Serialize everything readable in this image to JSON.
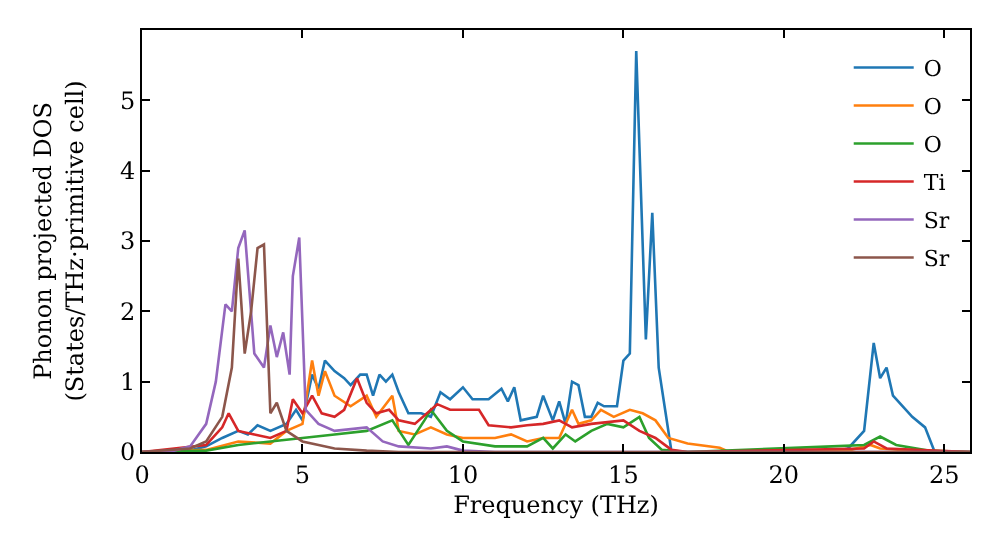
{
  "chart_data": {
    "type": "line",
    "xlabel": "Frequency (THz)",
    "ylabel": "Phonon projected DOS\n(States/THz·primitive cell)",
    "xlim": [
      0,
      25.8
    ],
    "ylim": [
      0,
      6
    ],
    "xticks": [
      0,
      5,
      10,
      15,
      20,
      25
    ],
    "yticks": [
      0,
      1,
      2,
      3,
      4,
      5
    ],
    "legend": "top right",
    "marker": "none",
    "line_style": "solid",
    "series": [
      {
        "name": "O",
        "color": "#1f77b4",
        "x": [
          0,
          1.5,
          2,
          2.5,
          3,
          3.3,
          3.6,
          4,
          4.5,
          4.8,
          5,
          5.3,
          5.5,
          5.7,
          6,
          6.3,
          6.5,
          6.8,
          7,
          7.2,
          7.4,
          7.6,
          7.8,
          8,
          8.3,
          8.7,
          9,
          9.3,
          9.6,
          10,
          10.3,
          10.8,
          11.2,
          11.4,
          11.6,
          11.8,
          12.3,
          12.5,
          12.8,
          13,
          13.2,
          13.4,
          13.6,
          13.8,
          14,
          14.2,
          14.4,
          14.8,
          15,
          15.2,
          15.4,
          15.7,
          15.9,
          16.1,
          16.3,
          16.5,
          21.5,
          22,
          22.5,
          22.8,
          23,
          23.2,
          23.4,
          24,
          24.4,
          24.7,
          25.8
        ],
        "values": [
          0,
          0.02,
          0.08,
          0.2,
          0.3,
          0.25,
          0.38,
          0.3,
          0.4,
          0.6,
          0.45,
          1.1,
          0.9,
          1.3,
          1.15,
          1.05,
          0.95,
          1.1,
          1.1,
          0.8,
          1.1,
          1.0,
          1.1,
          0.85,
          0.55,
          0.55,
          0.5,
          0.85,
          0.75,
          0.92,
          0.75,
          0.75,
          0.9,
          0.72,
          0.92,
          0.45,
          0.5,
          0.8,
          0.45,
          0.72,
          0.4,
          1.0,
          0.95,
          0.5,
          0.5,
          0.7,
          0.65,
          0.65,
          1.3,
          1.4,
          5.7,
          1.6,
          3.4,
          1.2,
          0.6,
          0,
          0,
          0.05,
          0.3,
          1.55,
          1.05,
          1.2,
          0.8,
          0.5,
          0.35,
          0,
          0
        ]
      },
      {
        "name": "O",
        "color": "#ff7f0e",
        "x": [
          0,
          2,
          3,
          4,
          4.5,
          5,
          5.3,
          5.5,
          5.7,
          6,
          6.5,
          7,
          7.3,
          7.8,
          8,
          8.5,
          9,
          9.5,
          10,
          11,
          11.5,
          12,
          12.5,
          13,
          13.4,
          13.6,
          14,
          14.3,
          14.7,
          15.2,
          15.6,
          16,
          16.4,
          17,
          18,
          18.3,
          22,
          22.7,
          23,
          24,
          25.8
        ],
        "values": [
          0,
          0.03,
          0.15,
          0.12,
          0.3,
          0.4,
          1.3,
          0.8,
          1.15,
          0.8,
          0.65,
          0.8,
          0.5,
          0.8,
          0.3,
          0.25,
          0.35,
          0.25,
          0.2,
          0.2,
          0.25,
          0.15,
          0.2,
          0.2,
          0.6,
          0.4,
          0.45,
          0.6,
          0.5,
          0.6,
          0.55,
          0.45,
          0.2,
          0.12,
          0.06,
          0,
          0.02,
          0.1,
          0.05,
          0.02,
          0
        ]
      },
      {
        "name": "O",
        "color": "#2ca02c",
        "x": [
          0,
          2,
          3,
          4,
          5,
          6,
          7,
          7.8,
          8.3,
          8.8,
          9,
          9.5,
          10,
          11,
          12,
          12.5,
          12.8,
          13.2,
          13.5,
          14,
          14.5,
          15,
          15.5,
          15.8,
          16.2,
          17,
          21.5,
          22.5,
          23,
          23.5,
          24.5,
          25.8
        ],
        "values": [
          0,
          0.02,
          0.1,
          0.15,
          0.2,
          0.25,
          0.3,
          0.45,
          0.1,
          0.45,
          0.6,
          0.3,
          0.15,
          0.08,
          0.08,
          0.2,
          0.05,
          0.25,
          0.15,
          0.3,
          0.4,
          0.35,
          0.5,
          0.2,
          0.03,
          0,
          0.08,
          0.1,
          0.22,
          0.1,
          0.02,
          0
        ]
      },
      {
        "name": "Ti",
        "color": "#d62728",
        "x": [
          0,
          2,
          2.5,
          2.7,
          3,
          3.5,
          4,
          4.5,
          4.7,
          5,
          5.3,
          5.6,
          6,
          6.3,
          6.7,
          7,
          7.3,
          7.7,
          8,
          8.5,
          9.2,
          9.6,
          10.5,
          10.8,
          11.5,
          12,
          12.5,
          13,
          13.4,
          14,
          15,
          15.5,
          16,
          16.5,
          17,
          22.5,
          22.8,
          23.2,
          25.8
        ],
        "values": [
          0,
          0.1,
          0.35,
          0.55,
          0.3,
          0.25,
          0.2,
          0.3,
          0.75,
          0.55,
          0.8,
          0.55,
          0.5,
          0.6,
          1.05,
          0.7,
          0.55,
          0.6,
          0.45,
          0.4,
          0.68,
          0.6,
          0.6,
          0.38,
          0.35,
          0.38,
          0.4,
          0.45,
          0.35,
          0.4,
          0.45,
          0.3,
          0.2,
          0.03,
          0,
          0.05,
          0.15,
          0.05,
          0
        ]
      },
      {
        "name": "Sr",
        "color": "#9467bd",
        "x": [
          0,
          1,
          1.5,
          2,
          2.3,
          2.6,
          2.8,
          3.0,
          3.2,
          3.5,
          3.8,
          4.0,
          4.2,
          4.4,
          4.6,
          4.7,
          4.9,
          5.1,
          5.5,
          6,
          7,
          7.5,
          8,
          9,
          9.5,
          10,
          11,
          25.8
        ],
        "values": [
          0,
          0.02,
          0.08,
          0.4,
          1.0,
          2.1,
          2.0,
          2.9,
          3.15,
          1.4,
          1.2,
          1.8,
          1.35,
          1.7,
          1.1,
          2.5,
          3.05,
          0.6,
          0.4,
          0.3,
          0.35,
          0.15,
          0.08,
          0.05,
          0.08,
          0.02,
          0,
          0
        ]
      },
      {
        "name": "Sr",
        "color": "#8c564b",
        "x": [
          0,
          1.5,
          2,
          2.5,
          2.8,
          3.0,
          3.2,
          3.4,
          3.6,
          3.8,
          4.0,
          4.2,
          4.5,
          5,
          5.5,
          6,
          7,
          8,
          25.8
        ],
        "values": [
          0,
          0.05,
          0.15,
          0.5,
          1.2,
          2.75,
          1.4,
          2.0,
          2.9,
          2.95,
          0.55,
          0.7,
          0.3,
          0.15,
          0.1,
          0.05,
          0.02,
          0,
          0
        ]
      }
    ]
  }
}
